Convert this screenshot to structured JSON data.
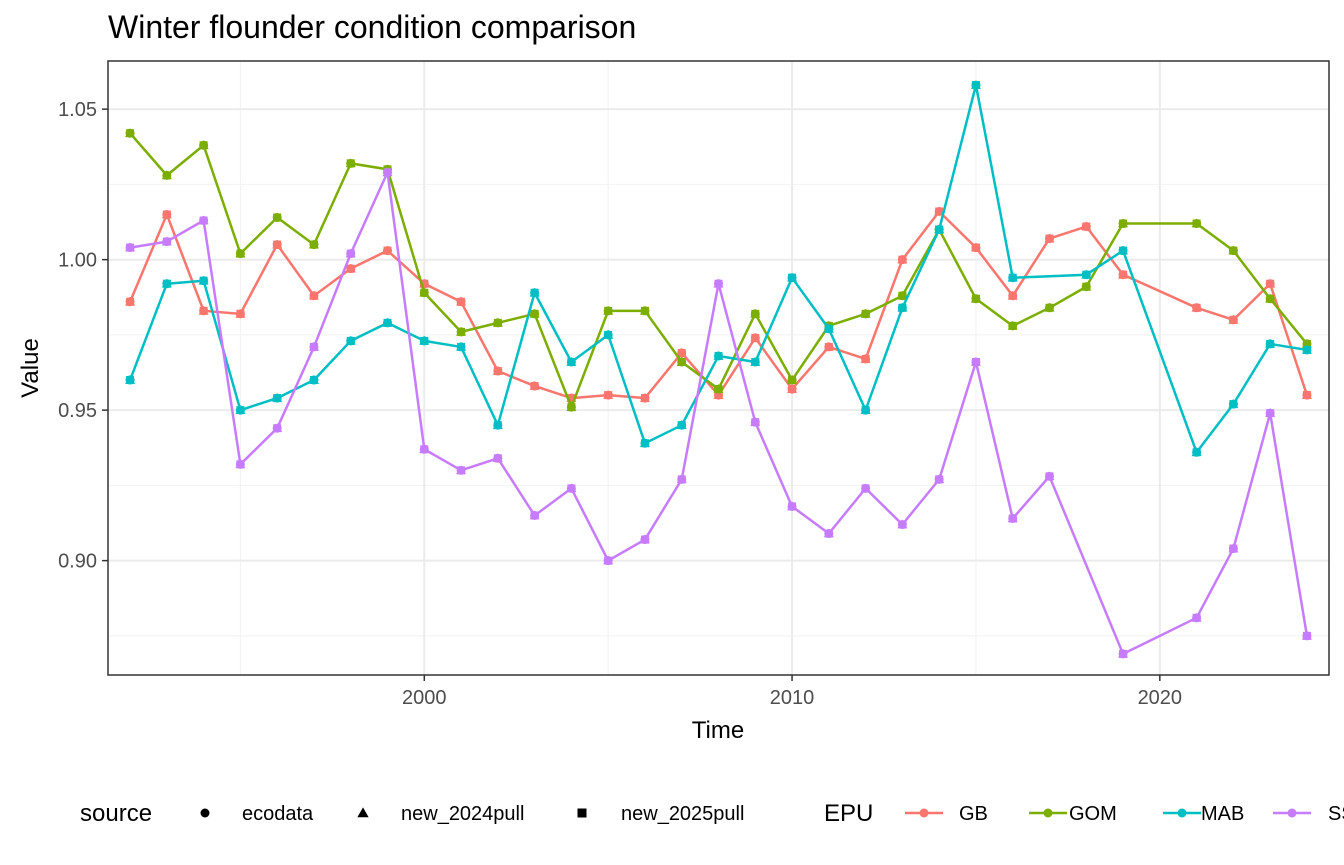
{
  "chart_data": {
    "type": "line",
    "title": "Winter flounder condition comparison",
    "xlabel": "Time",
    "ylabel": "Value",
    "xlim": [
      1991.4,
      2024.6
    ],
    "ylim": [
      0.862,
      1.066
    ],
    "x_ticks": [
      "2000",
      "2010",
      "2020"
    ],
    "y_ticks": [
      "0.90",
      "0.95",
      "1.00",
      "1.05"
    ],
    "grid": true,
    "legend_position": "bottom",
    "legend_shape_title": "source",
    "legend_color_title": "EPU",
    "sources": [
      {
        "name": "ecodata",
        "shape": "circle"
      },
      {
        "name": "new_2024pull",
        "shape": "triangle"
      },
      {
        "name": "new_2025pull",
        "shape": "square"
      }
    ],
    "series": [
      {
        "name": "GB",
        "color": "#F8766D",
        "x": [
          1992,
          1993,
          1994,
          1995,
          1996,
          1997,
          1998,
          1999,
          2000,
          2001,
          2002,
          2003,
          2004,
          2005,
          2006,
          2007,
          2008,
          2009,
          2010,
          2011,
          2012,
          2013,
          2014,
          2015,
          2016,
          2017,
          2018,
          2019,
          2021,
          2022,
          2023,
          2024
        ],
        "values": [
          0.986,
          1.015,
          0.983,
          0.982,
          1.005,
          0.988,
          0.997,
          1.003,
          0.992,
          0.986,
          0.963,
          0.958,
          0.954,
          0.955,
          0.954,
          0.969,
          0.955,
          0.974,
          0.957,
          0.971,
          0.967,
          1.0,
          1.016,
          1.004,
          0.988,
          1.007,
          1.011,
          0.995,
          0.984,
          0.98,
          0.992,
          0.955
        ]
      },
      {
        "name": "GOM",
        "color": "#7CAE00",
        "x": [
          1992,
          1993,
          1994,
          1995,
          1996,
          1997,
          1998,
          1999,
          2000,
          2001,
          2002,
          2003,
          2004,
          2005,
          2006,
          2007,
          2008,
          2009,
          2010,
          2011,
          2012,
          2013,
          2014,
          2015,
          2016,
          2017,
          2018,
          2019,
          2021,
          2022,
          2023,
          2024
        ],
        "values": [
          1.042,
          1.028,
          1.038,
          1.002,
          1.014,
          1.005,
          1.032,
          1.03,
          0.989,
          0.976,
          0.979,
          0.982,
          0.951,
          0.983,
          0.983,
          0.966,
          0.957,
          0.982,
          0.96,
          0.978,
          0.982,
          0.988,
          1.01,
          0.987,
          0.978,
          0.984,
          0.991,
          1.012,
          1.012,
          1.003,
          0.987,
          0.972
        ]
      },
      {
        "name": "MAB",
        "color": "#00BFC4",
        "x": [
          1992,
          1993,
          1994,
          1995,
          1996,
          1997,
          1998,
          1999,
          2000,
          2001,
          2002,
          2003,
          2004,
          2005,
          2006,
          2007,
          2008,
          2009,
          2010,
          2011,
          2012,
          2013,
          2014,
          2015,
          2016,
          2018,
          2019,
          2021,
          2022,
          2023,
          2024
        ],
        "values": [
          0.96,
          0.992,
          0.993,
          0.95,
          0.954,
          0.96,
          0.973,
          0.979,
          0.973,
          0.971,
          0.945,
          0.989,
          0.966,
          0.975,
          0.939,
          0.945,
          0.968,
          0.966,
          0.994,
          0.977,
          0.95,
          0.984,
          1.01,
          1.058,
          0.994,
          0.995,
          1.003,
          0.936,
          0.952,
          0.972,
          0.97
        ]
      },
      {
        "name": "SS",
        "color": "#C77CFF",
        "x": [
          1992,
          1993,
          1994,
          1995,
          1996,
          1997,
          1998,
          1999,
          2000,
          2001,
          2002,
          2003,
          2004,
          2005,
          2006,
          2007,
          2008,
          2009,
          2010,
          2011,
          2012,
          2013,
          2014,
          2015,
          2016,
          2017,
          2019,
          2021,
          2022,
          2023,
          2024
        ],
        "values": [
          1.004,
          1.006,
          1.013,
          0.932,
          0.944,
          0.971,
          1.002,
          1.029,
          0.937,
          0.93,
          0.934,
          0.915,
          0.924,
          0.9,
          0.907,
          0.927,
          0.992,
          0.946,
          0.918,
          0.909,
          0.924,
          0.912,
          0.927,
          0.966,
          0.914,
          0.928,
          0.869,
          0.881,
          0.904,
          0.949,
          0.875
        ]
      }
    ]
  }
}
